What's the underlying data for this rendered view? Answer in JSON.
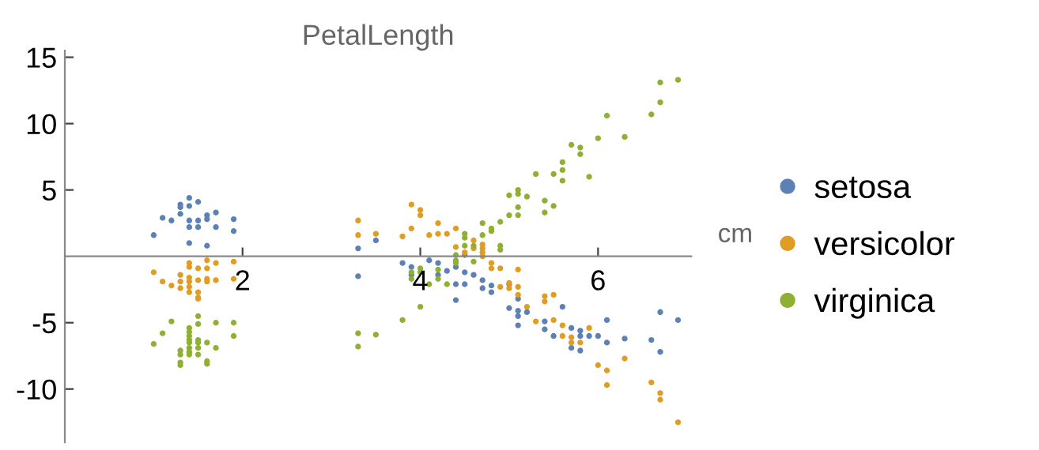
{
  "chart_data": {
    "type": "scatter",
    "title": "PetalLength",
    "xlabel": "cm",
    "xlim": [
      0,
      7.05
    ],
    "ylim": [
      -14,
      15.5
    ],
    "xticks": [
      2,
      4,
      6
    ],
    "yticks": [
      -10,
      -5,
      5,
      10,
      15
    ],
    "legend": "right",
    "marker": "circle",
    "grid": false,
    "series": [
      {
        "name": "setosa",
        "color": "#5e81b5",
        "x": [
          1.0,
          1.1,
          1.2,
          1.3,
          1.3,
          1.3,
          1.4,
          1.4,
          1.4,
          1.4,
          1.5,
          1.5,
          1.5,
          1.6,
          1.6,
          1.7,
          1.7,
          1.9,
          1.9,
          1.4,
          1.6,
          3.3,
          3.5,
          3.3,
          3.8,
          3.9,
          3.9,
          4.1,
          4.2,
          4.2,
          4.3,
          4.4,
          4.4,
          4.4,
          4.5,
          4.5,
          4.5,
          4.6,
          4.7,
          4.7,
          4.8,
          4.8,
          5.0,
          5.0,
          5.1,
          5.1,
          5.1,
          5.1,
          5.2,
          5.4,
          5.4,
          5.5,
          5.6,
          5.7,
          5.7,
          5.8,
          5.8,
          5.8,
          5.9,
          6.0,
          6.1,
          6.1,
          6.3,
          6.6,
          6.7,
          6.7,
          6.9
        ],
        "values": [
          1.6,
          2.9,
          2.7,
          3.9,
          3.7,
          3.2,
          4.4,
          3.8,
          2.7,
          2.2,
          4.1,
          2.7,
          2.2,
          3.1,
          2.8,
          3.3,
          2.2,
          2.8,
          1.9,
          1.0,
          0.8,
          0.6,
          1.2,
          -1.5,
          -0.5,
          -0.8,
          -1.4,
          -0.3,
          -0.5,
          -1.4,
          -1.1,
          -0.8,
          -2.1,
          -3.3,
          0.1,
          -1.2,
          -2.1,
          -1.4,
          -1.8,
          -2.4,
          -2.2,
          -2.7,
          -2.1,
          -3.9,
          -3.2,
          -4.1,
          -4.5,
          -5.2,
          -4.2,
          -4.9,
          -5.5,
          -6.0,
          -3.8,
          -5.4,
          -6.9,
          -5.6,
          -6.0,
          -7.1,
          -6.0,
          -6.0,
          -4.8,
          -6.5,
          -6.2,
          -6.3,
          -4.2,
          -7.2,
          -4.8
        ]
      },
      {
        "name": "versicolor",
        "color": "#e19c24",
        "x": [
          1.0,
          1.1,
          1.2,
          1.3,
          1.3,
          1.3,
          1.4,
          1.4,
          1.4,
          1.4,
          1.4,
          1.4,
          1.5,
          1.5,
          1.5,
          1.5,
          1.5,
          1.6,
          1.6,
          1.6,
          1.6,
          1.7,
          1.7,
          1.9,
          1.9,
          3.3,
          3.3,
          3.5,
          3.8,
          3.9,
          3.9,
          4.0,
          4.0,
          4.1,
          4.2,
          4.2,
          4.3,
          4.4,
          4.4,
          4.5,
          4.6,
          4.6,
          4.7,
          4.7,
          4.7,
          4.7,
          4.8,
          4.8,
          4.9,
          4.9,
          5.0,
          5.0,
          5.1,
          5.1,
          5.1,
          5.2,
          5.3,
          5.4,
          5.4,
          5.5,
          5.5,
          5.6,
          5.6,
          5.7,
          5.7,
          5.8,
          5.9,
          6.0,
          6.1,
          6.1,
          6.3,
          6.6,
          6.7,
          6.7,
          6.9
        ],
        "values": [
          -1.2,
          -1.9,
          -2.2,
          -1.4,
          -1.9,
          -2.4,
          -0.5,
          -0.8,
          -1.6,
          -1.9,
          -2.3,
          -2.7,
          -0.9,
          -1.8,
          -2.7,
          -3.1,
          -3.2,
          -0.3,
          -0.9,
          -1.7,
          -1.9,
          -0.5,
          -1.8,
          -0.4,
          -1.7,
          2.7,
          1.6,
          1.7,
          1.5,
          3.9,
          2.1,
          3.5,
          3.1,
          1.6,
          2.5,
          1.7,
          1.7,
          2.1,
          0.7,
          0.3,
          1.2,
          0.6,
          0.9,
          0.6,
          0.3,
          0.0,
          -0.5,
          -0.9,
          -0.9,
          -2.3,
          -2.0,
          -2.4,
          -1.0,
          -2.3,
          -2.9,
          -3.8,
          -4.9,
          -3.0,
          -3.4,
          -2.9,
          -4.8,
          -5.2,
          -6.0,
          -6.1,
          -6.5,
          -6.5,
          -5.4,
          -8.2,
          -8.6,
          -9.7,
          -7.7,
          -9.5,
          -10.3,
          -10.8,
          -12.5
        ]
      },
      {
        "name": "virginica",
        "color": "#8fb032",
        "x": [
          1.0,
          1.1,
          1.2,
          1.3,
          1.3,
          1.3,
          1.3,
          1.4,
          1.4,
          1.4,
          1.4,
          1.4,
          1.4,
          1.4,
          1.4,
          1.5,
          1.5,
          1.5,
          1.5,
          1.5,
          1.5,
          1.6,
          1.6,
          1.6,
          1.7,
          1.7,
          1.9,
          1.9,
          3.3,
          3.3,
          3.5,
          3.8,
          4.0,
          3.9,
          3.9,
          4.0,
          4.0,
          4.1,
          4.2,
          4.2,
          4.3,
          4.4,
          4.4,
          4.4,
          4.5,
          4.5,
          4.5,
          4.6,
          4.6,
          4.7,
          4.7,
          4.8,
          4.8,
          4.9,
          4.9,
          4.9,
          5.0,
          5.0,
          5.1,
          5.1,
          5.1,
          5.1,
          5.2,
          5.3,
          5.4,
          5.4,
          5.5,
          5.5,
          5.6,
          5.6,
          5.6,
          5.7,
          5.8,
          5.8,
          5.9,
          6.0,
          6.1,
          6.3,
          6.6,
          6.7,
          6.7,
          6.9
        ],
        "values": [
          -6.6,
          -5.8,
          -4.9,
          -7.1,
          -7.4,
          -8.0,
          -8.2,
          -5.4,
          -5.7,
          -6.0,
          -6.3,
          -6.5,
          -6.9,
          -7.2,
          -7.4,
          -4.5,
          -5.1,
          -6.3,
          -6.5,
          -6.9,
          -7.4,
          -6.5,
          -7.9,
          -8.1,
          -5.0,
          -6.9,
          -5.0,
          -6.0,
          -5.8,
          -6.8,
          -5.9,
          -4.8,
          -3.8,
          -1.2,
          -1.7,
          -0.9,
          -1.2,
          -2.1,
          -1.0,
          -1.7,
          -2.1,
          0.1,
          -0.5,
          -0.3,
          1.7,
          1.4,
          0.8,
          0.8,
          -0.4,
          2.5,
          1.6,
          2.1,
          1.9,
          2.6,
          0.8,
          0.5,
          4.6,
          3.1,
          5.0,
          4.7,
          3.7,
          3.1,
          4.5,
          6.2,
          4.2,
          3.3,
          6.2,
          3.8,
          7.1,
          6.5,
          5.7,
          8.4,
          8.2,
          7.7,
          6.0,
          8.9,
          10.6,
          9.0,
          10.7,
          13.1,
          11.6,
          13.3
        ]
      }
    ]
  }
}
